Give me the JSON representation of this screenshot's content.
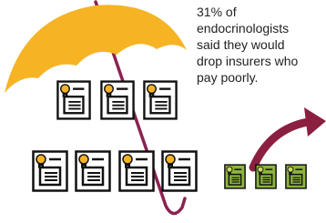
{
  "caption": {
    "lines": [
      "31% of",
      "endocrinologists",
      "said they would",
      "drop insurers who",
      "pay poorly."
    ]
  }
}
